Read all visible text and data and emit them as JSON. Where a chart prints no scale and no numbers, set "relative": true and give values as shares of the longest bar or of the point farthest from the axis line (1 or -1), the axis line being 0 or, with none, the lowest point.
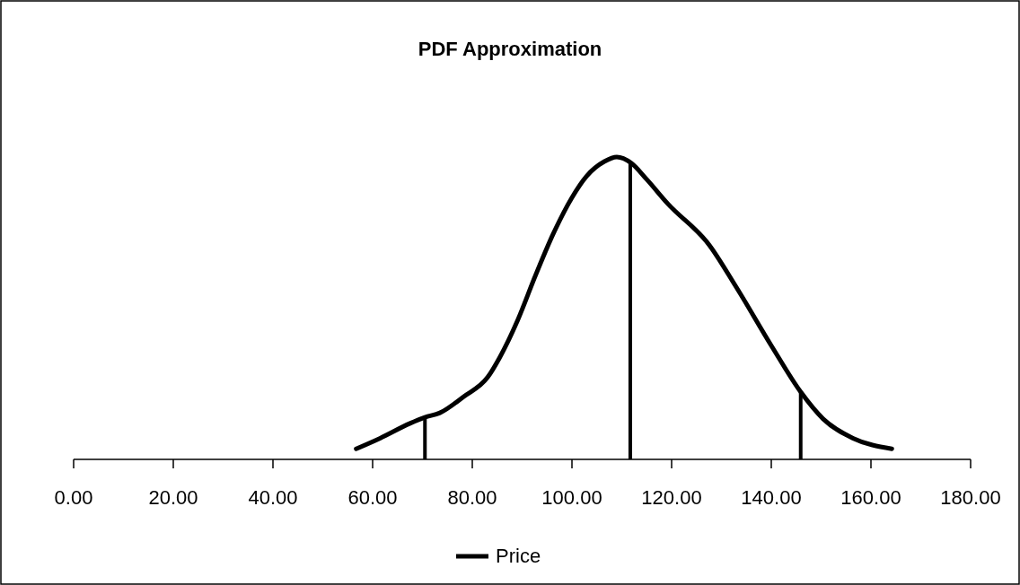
{
  "chart_data": {
    "type": "line",
    "title": "PDF Approximation",
    "relative": true,
    "xlim": [
      0,
      180
    ],
    "xticks": [
      {
        "value": 0,
        "label": "0.00"
      },
      {
        "value": 20,
        "label": "20.00"
      },
      {
        "value": 40,
        "label": "40.00"
      },
      {
        "value": 60,
        "label": "60.00"
      },
      {
        "value": 80,
        "label": "80.00"
      },
      {
        "value": 100,
        "label": "100.00"
      },
      {
        "value": 120,
        "label": "120.00"
      },
      {
        "value": 140,
        "label": "140.00"
      },
      {
        "value": 160,
        "label": "160.00"
      },
      {
        "value": 180,
        "label": "180.00"
      }
    ],
    "legend": "bottom",
    "grid": false,
    "marker": "none",
    "line_style": "solid",
    "series": [
      {
        "name": "Price",
        "color": "#000000",
        "x": [
          56.7,
          61.5,
          67.5,
          70.5,
          73.5,
          78.3,
          83.1,
          85.5,
          89.1,
          92.7,
          96.3,
          100.0,
          102.9,
          106.5,
          109.0,
          111.9,
          115.0,
          119.2,
          127.6,
          133.0,
          140.2,
          145.9,
          150.4,
          156.4,
          164.2
        ],
        "values": [
          0.035,
          0.07,
          0.119,
          0.139,
          0.154,
          0.208,
          0.272,
          0.337,
          0.46,
          0.609,
          0.748,
          0.866,
          0.936,
          0.985,
          1.0,
          0.98,
          0.926,
          0.846,
          0.708,
          0.569,
          0.371,
          0.223,
          0.134,
          0.07,
          0.035
        ]
      },
      {
        "type": "bar",
        "color": "#000000",
        "x": [
          70.5,
          111.7,
          145.9
        ],
        "values": [
          0.139,
          0.98,
          0.223
        ]
      }
    ]
  }
}
